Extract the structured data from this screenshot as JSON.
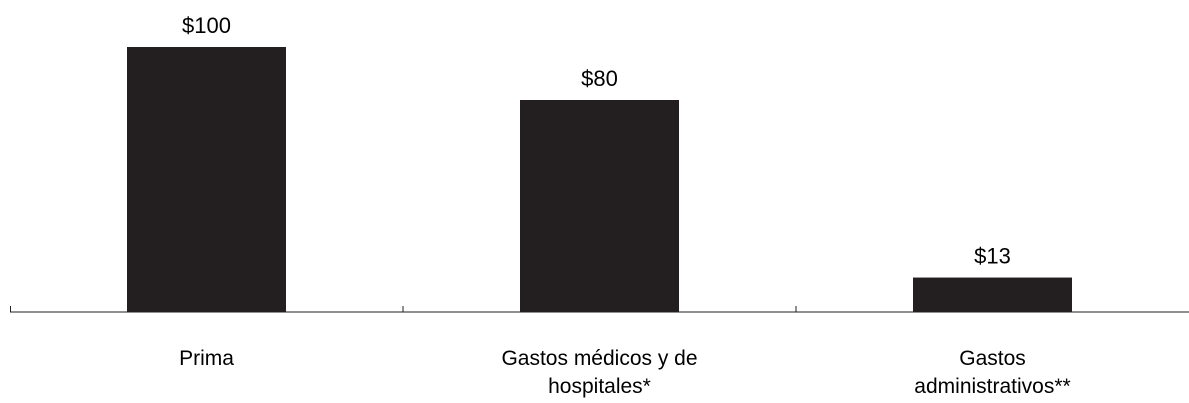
{
  "chart_data": {
    "type": "bar",
    "categories": [
      [
        "Prima"
      ],
      [
        "Gastos médicos y de",
        "hospitales*"
      ],
      [
        "Gastos",
        "administrativos**"
      ]
    ],
    "values": [
      100,
      80,
      13
    ],
    "value_labels": [
      "$100",
      "$80",
      "$13"
    ],
    "ylim": [
      0,
      100
    ],
    "bar_color": "#231f20",
    "axis_color": "#231f20",
    "grid": false,
    "legend": "none"
  }
}
